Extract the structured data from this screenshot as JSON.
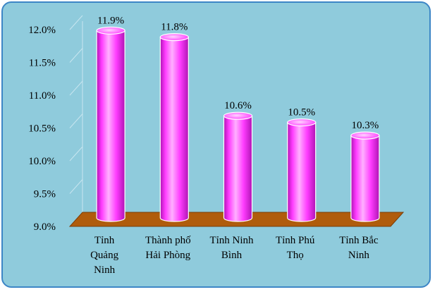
{
  "chart_data": {
    "type": "bar",
    "title": "",
    "xlabel": "",
    "ylabel": "",
    "categories": [
      [
        "Tỉnh",
        "Quảng",
        "Ninh"
      ],
      [
        "Thành phố",
        "Hải Phòng"
      ],
      [
        "Tỉnh Ninh",
        "Bình"
      ],
      [
        "Tỉnh Phú",
        "Thọ"
      ],
      [
        "Tỉnh Bắc",
        "Ninh"
      ]
    ],
    "values": [
      11.9,
      11.8,
      10.6,
      10.5,
      10.3
    ],
    "data_labels": [
      "11.9%",
      "11.8%",
      "10.6%",
      "10.5%",
      "10.3%"
    ],
    "ylim": [
      9.0,
      12.0
    ],
    "yticks": [
      "9.0%",
      "9.5%",
      "10.0%",
      "10.5%",
      "11.0%",
      "11.5%",
      "12.0%"
    ],
    "grid": false,
    "style": "3d-cylinder",
    "colors": {
      "background": "#8fcbdc",
      "border": "#3d86c6",
      "floor": "#b05c0c",
      "floor_edge": "#7a3c06",
      "bar_light": "#ffb0ff",
      "bar_mid": "#ff3cff",
      "bar_dark": "#b014b4",
      "axis_line": "#c8e6f0"
    }
  }
}
